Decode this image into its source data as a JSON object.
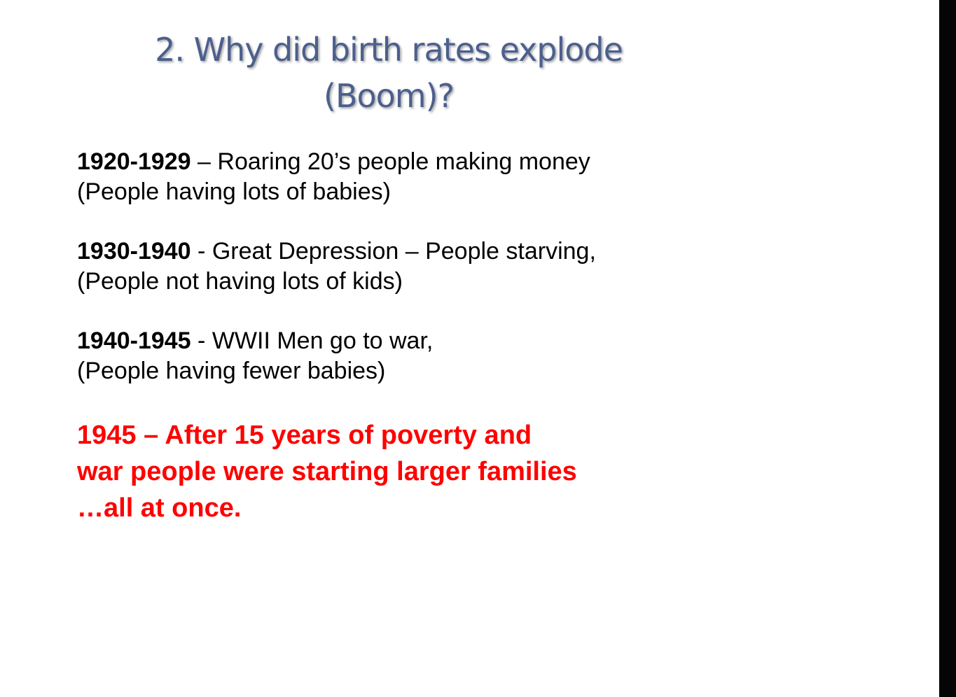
{
  "slide": {
    "title": {
      "line1": "2.  Why did birth rates explode",
      "line2": "(Boom)?"
    },
    "entries": [
      {
        "years": "1920-1929",
        "text": " – Roaring 20’s people making money",
        "note": "(People having lots of babies)"
      },
      {
        "years": "1930-1940",
        "text": " - Great Depression – People starving,",
        "note": "(People not having lots of kids)"
      },
      {
        "years": "1940-1945",
        "text": " - WWII Men go to war,",
        "note": "(People having fewer babies)"
      }
    ],
    "conclusion": {
      "line1": "1945 – After 15 years of poverty and",
      "line2": "war people were starting larger families",
      "line3": "…all at once."
    }
  },
  "colors": {
    "title": "#4c5f8e",
    "body_text": "#000000",
    "conclusion": "#ff0000",
    "background": "#ffffff",
    "edge_bar": "#050505"
  }
}
